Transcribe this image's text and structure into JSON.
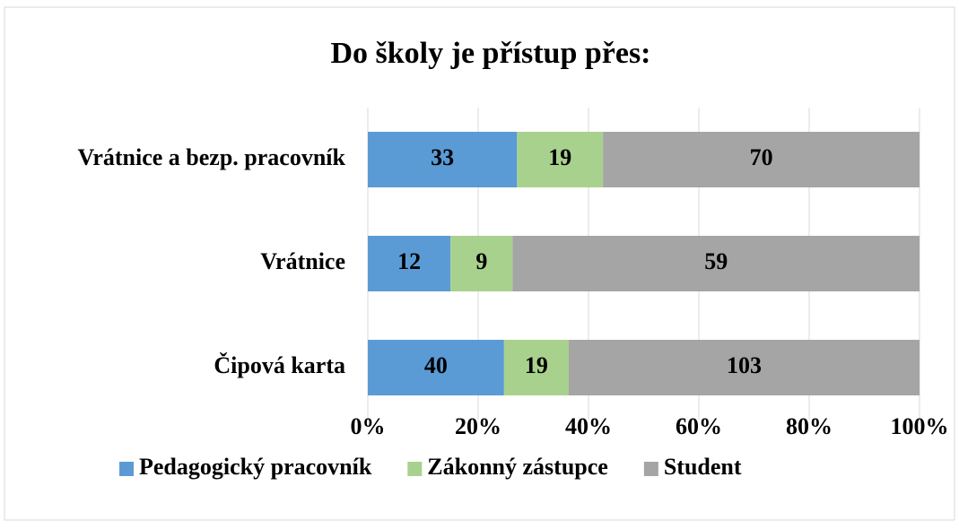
{
  "chart_data": {
    "type": "bar",
    "orientation": "horizontal",
    "stacking": "percent",
    "title": "Do školy je přístup přes:",
    "categories": [
      "Vrátnice a bezp. pracovník",
      "Vrátnice",
      "Čipová karta"
    ],
    "series": [
      {
        "name": "Pedagogický pracovník",
        "color": "#5b9bd5",
        "values": [
          33,
          12,
          40
        ]
      },
      {
        "name": "Zákonný zástupce",
        "color": "#a9d18e",
        "values": [
          19,
          9,
          19
        ]
      },
      {
        "name": "Student",
        "color": "#a5a5a5",
        "values": [
          70,
          59,
          103
        ]
      }
    ],
    "xlim": [
      0,
      100
    ],
    "xticks": [
      {
        "value": 0,
        "label": "0%"
      },
      {
        "value": 20,
        "label": "20%"
      },
      {
        "value": 40,
        "label": "40%"
      },
      {
        "value": 60,
        "label": "60%"
      },
      {
        "value": 80,
        "label": "80%"
      },
      {
        "value": 100,
        "label": "100%"
      }
    ],
    "grid": true,
    "legend": "bottom"
  }
}
